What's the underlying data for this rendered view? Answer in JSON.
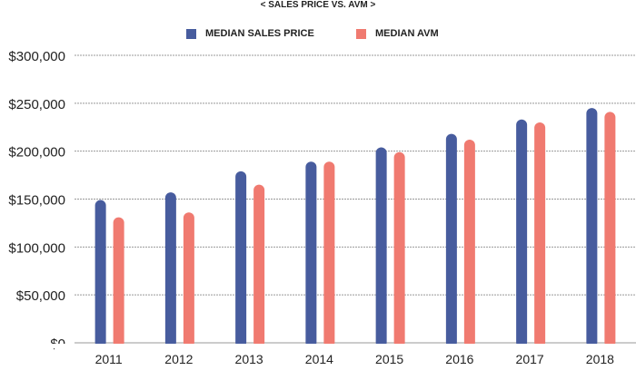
{
  "chart_data": {
    "type": "bar",
    "title": "< SALES PRICE VS. AVM >",
    "categories": [
      "2011",
      "2012",
      "2013",
      "2014",
      "2015",
      "2016",
      "2017",
      "2018"
    ],
    "series": [
      {
        "name": "MEDIAN SALES PRICE",
        "color": "#475c9e",
        "values": [
          149000,
          157000,
          179000,
          189000,
          204000,
          218000,
          233000,
          245000
        ]
      },
      {
        "name": "MEDIAN AVM",
        "color": "#f07a70",
        "values": [
          131000,
          136000,
          165000,
          189000,
          199000,
          212000,
          230000,
          241000
        ]
      }
    ],
    "yticks": [
      "$0",
      "$50,000",
      "$100,000",
      "$150,000",
      "$200,000",
      "$250,000",
      "$300,000"
    ],
    "ylim": [
      0,
      300000
    ],
    "grid": true,
    "legend": "top-center"
  }
}
